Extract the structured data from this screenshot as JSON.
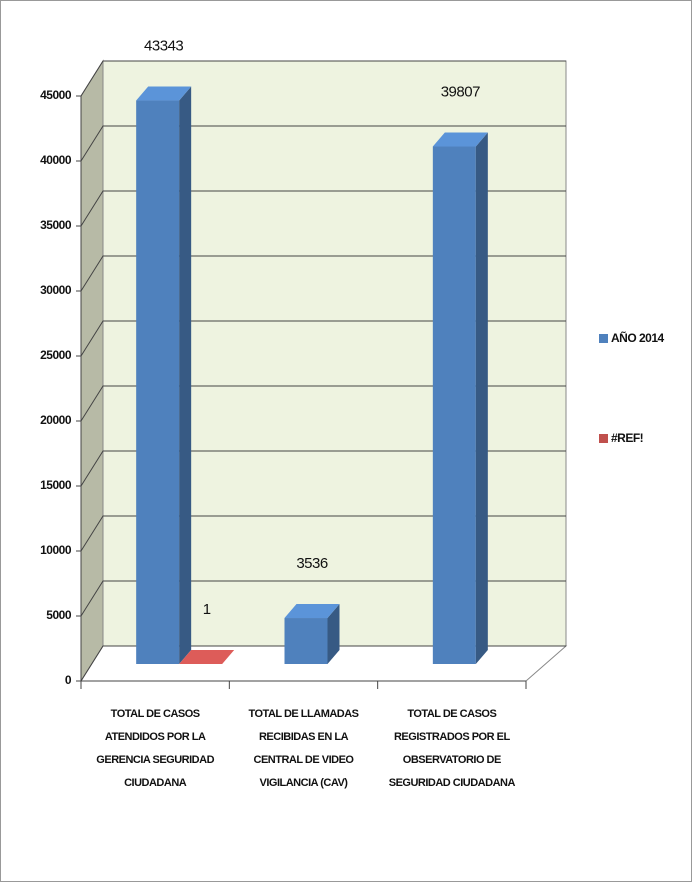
{
  "chart_data": {
    "type": "bar3d",
    "categories": [
      "TOTAL DE CASOS ATENDIDOS POR LA GERENCIA SEGURIDAD CIUDADANA",
      "TOTAL DE LLAMADAS RECIBIDAS EN LA CENTRAL DE VIDEO VIGILANCIA (CAV)",
      "TOTAL DE CASOS REGISTRADOS POR EL OBSERVATORIO DE SEGURIDAD CIUDADANA"
    ],
    "series": [
      {
        "name": "AÑO 2014",
        "color": "#4f81bd",
        "values": [
          43343,
          3536,
          39807
        ]
      },
      {
        "name": "#REF!",
        "color": "#c0504d",
        "values": [
          1,
          null,
          null
        ]
      }
    ],
    "ylim": [
      0,
      45000
    ],
    "yticks": [
      0,
      5000,
      10000,
      15000,
      20000,
      25000,
      30000,
      35000,
      40000,
      45000
    ],
    "grid": true,
    "legend": "right"
  }
}
